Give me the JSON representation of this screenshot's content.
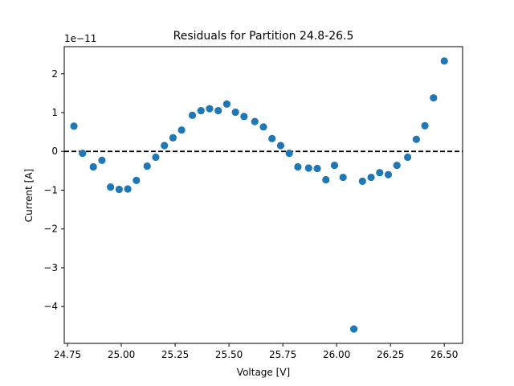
{
  "chart_data": {
    "type": "scatter",
    "title": "Residuals for Partition 24.8-26.5",
    "xlabel": "Voltage [V]",
    "ylabel": "Current [A]",
    "y_offset_label": "1e−11",
    "xlim": [
      24.735,
      26.585
    ],
    "ylim": [
      -4.95,
      2.7
    ],
    "x_ticks": [
      24.75,
      25.0,
      25.25,
      25.5,
      25.75,
      26.0,
      26.25,
      26.5
    ],
    "x_tick_labels": [
      "24.75",
      "25.00",
      "25.25",
      "25.50",
      "25.75",
      "26.00",
      "26.25",
      "26.50"
    ],
    "y_ticks": [
      -4,
      -3,
      -2,
      -1,
      0,
      1,
      2
    ],
    "y_tick_labels": [
      "−4",
      "−3",
      "−2",
      "−1",
      "0",
      "1",
      "2"
    ],
    "reference_line": {
      "y": 0,
      "style": "dashed",
      "color": "#000000"
    },
    "grid": false,
    "marker_color": "#1f77b4",
    "series": [
      {
        "x": [
          24.78,
          24.82,
          24.87,
          24.91,
          24.95,
          24.99,
          25.03,
          25.07,
          25.12,
          25.16,
          25.2,
          25.24,
          25.28,
          25.33,
          25.37,
          25.41,
          25.45,
          25.49,
          25.53,
          25.57,
          25.62,
          25.66,
          25.7,
          25.74,
          25.78,
          25.82,
          25.87,
          25.91,
          25.95,
          25.99,
          26.03,
          26.08,
          26.12,
          26.16,
          26.2,
          26.24,
          26.28,
          26.33,
          26.37,
          26.41,
          26.45,
          26.5
        ],
        "y": [
          0.65,
          -0.05,
          -0.4,
          -0.23,
          -0.92,
          -0.98,
          -0.97,
          -0.75,
          -0.38,
          -0.15,
          0.15,
          0.35,
          0.55,
          0.93,
          1.05,
          1.1,
          1.05,
          1.22,
          1.01,
          0.9,
          0.77,
          0.63,
          0.33,
          0.15,
          -0.05,
          -0.4,
          -0.43,
          -0.44,
          -0.73,
          -0.36,
          -0.67,
          -4.58,
          -0.77,
          -0.67,
          -0.55,
          -0.6,
          -0.36,
          -0.15,
          0.31,
          0.66,
          1.38,
          2.33
        ]
      }
    ]
  }
}
